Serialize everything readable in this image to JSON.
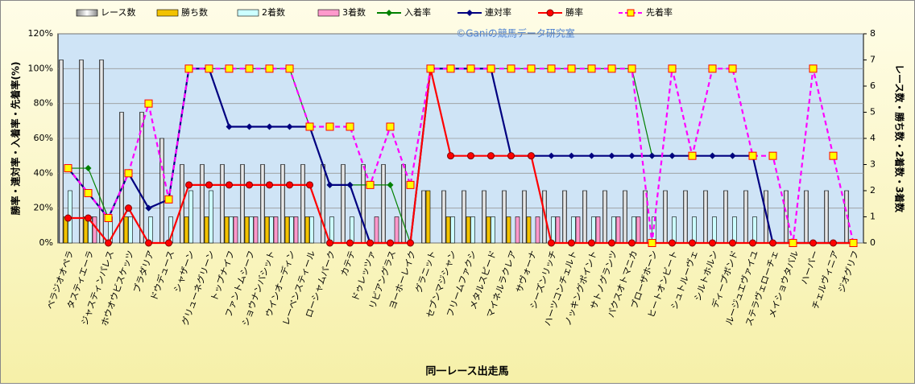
{
  "chart_data": {
    "type": "combo",
    "watermark": "©Ganiの競馬データ研究室",
    "xlabel": "同一レース出走馬",
    "ylabel": "勝率・連対率・入着率・先着率(%)",
    "y2label": "レース数・勝ち数・2着数・3着数",
    "categories": [
      "ベラジオオペラ",
      "タスティエーラ",
      "ジャスティンパレス",
      "ホウオウビスケッツ",
      "ブラダリア",
      "ドウデュース",
      "シャザーン",
      "グリューネグリーン",
      "トップナイフ",
      "ファントムシーフ",
      "ショウナンバシット",
      "ウインオーディン",
      "レーベンスティール",
      "ローシャムパーク",
      "カテテ",
      "ドゥレッツァ",
      "リビアングラス",
      "ヨーホーレイク",
      "グラニット",
      "セブンマジシャン",
      "フリームファクシ",
      "メタルスピード",
      "マイネルラクレア",
      "サヴォーナ",
      "シーズンリッチ",
      "ハーツコンチェルト",
      "ノッキングポイント",
      "サトノグランツ",
      "パクスオトマニカ",
      "ブローザホーン",
      "ヒートオンビート",
      "シュトルーヴェ",
      "シルトホルン",
      "ディープボンド",
      "ルージュエヴァイユ",
      "ステラヴェローチェ",
      "メイショウタバル",
      "ハーパー",
      "チェルヴィニア",
      "ジオグリフ"
    ],
    "ylim": [
      0,
      120
    ],
    "yticks": [
      {
        "value": 0,
        "label": "0%"
      },
      {
        "value": 20,
        "label": "20%"
      },
      {
        "value": 40,
        "label": "40%"
      },
      {
        "value": 60,
        "label": "60%"
      },
      {
        "value": 80,
        "label": "80%"
      },
      {
        "value": 100,
        "label": "100%"
      },
      {
        "value": 120,
        "label": "120%"
      }
    ],
    "y2lim": [
      0,
      8
    ],
    "y2ticks": [
      0,
      1,
      2,
      3,
      4,
      5,
      6,
      7,
      8
    ],
    "grid": true,
    "series": [
      {
        "name": "レース数",
        "type": "bar",
        "axis": "y2",
        "color": "#ffffff",
        "values": [
          7,
          7,
          7,
          5,
          5,
          4,
          3,
          3,
          3,
          3,
          3,
          3,
          3,
          3,
          3,
          3,
          3,
          3,
          2,
          2,
          2,
          2,
          2,
          2,
          2,
          2,
          2,
          2,
          2,
          2,
          2,
          2,
          2,
          2,
          2,
          2,
          2,
          2,
          2,
          2
        ]
      },
      {
        "name": "勝ち数",
        "type": "bar",
        "axis": "y2",
        "color": "#f2c200",
        "values": [
          1,
          1,
          0,
          1,
          0,
          0,
          1,
          1,
          1,
          1,
          1,
          1,
          1,
          0,
          0,
          0,
          0,
          0,
          2,
          1,
          1,
          1,
          1,
          1,
          0,
          0,
          0,
          0,
          0,
          0,
          0,
          0,
          0,
          0,
          0,
          0,
          0,
          0,
          0,
          0
        ]
      },
      {
        "name": "2着数",
        "type": "bar",
        "axis": "y2",
        "color": "#ccffff",
        "values": [
          2,
          1,
          1,
          1,
          1,
          1,
          2,
          2,
          1,
          1,
          1,
          1,
          1,
          1,
          1,
          0,
          0,
          0,
          0,
          1,
          1,
          1,
          0,
          0,
          1,
          1,
          1,
          1,
          1,
          1,
          1,
          1,
          1,
          1,
          1,
          0,
          0,
          0,
          0,
          0
        ]
      },
      {
        "name": "3着数",
        "type": "bar",
        "axis": "y2",
        "color": "#ff99cc",
        "values": [
          0,
          1,
          0,
          0,
          0,
          0,
          0,
          0,
          1,
          1,
          1,
          1,
          0,
          0,
          0,
          1,
          1,
          0,
          0,
          0,
          0,
          0,
          1,
          1,
          1,
          1,
          1,
          1,
          1,
          0,
          0,
          0,
          0,
          0,
          0,
          0,
          0,
          0,
          0,
          0
        ]
      },
      {
        "name": "入着率",
        "type": "line",
        "color": "#008000",
        "marker": "diamond",
        "values": [
          42.9,
          42.9,
          14.3,
          40,
          20,
          25,
          100,
          100,
          100,
          100,
          100,
          100,
          66.7,
          33.3,
          33.3,
          33.3,
          33.3,
          0,
          100,
          100,
          100,
          100,
          100,
          100,
          100,
          100,
          100,
          100,
          100,
          50,
          50,
          50,
          50,
          50,
          50,
          0,
          0,
          0,
          0,
          0
        ]
      },
      {
        "name": "連対率",
        "type": "line",
        "color": "#000080",
        "marker": "diamond",
        "values": [
          42.9,
          28.6,
          14.3,
          40,
          20,
          25,
          100,
          100,
          66.7,
          66.7,
          66.7,
          66.7,
          66.7,
          33.3,
          33.3,
          0,
          0,
          0,
          100,
          100,
          100,
          100,
          50,
          50,
          50,
          50,
          50,
          50,
          50,
          50,
          50,
          50,
          50,
          50,
          50,
          0,
          0,
          0,
          0,
          0
        ]
      },
      {
        "name": "勝率",
        "type": "line",
        "color": "#ff0000",
        "marker": "circle",
        "values": [
          14.3,
          14.3,
          0,
          20,
          0,
          0,
          33.3,
          33.3,
          33.3,
          33.3,
          33.3,
          33.3,
          33.3,
          0,
          0,
          0,
          0,
          0,
          100,
          50,
          50,
          50,
          50,
          50,
          0,
          0,
          0,
          0,
          0,
          0,
          0,
          0,
          0,
          0,
          0,
          0,
          0,
          0,
          0,
          0
        ]
      },
      {
        "name": "先着率",
        "type": "line",
        "color": "#ff00ff",
        "dashed": true,
        "marker": "square",
        "values": [
          42.9,
          28.6,
          14.3,
          40,
          80,
          25,
          100,
          100,
          100,
          100,
          100,
          100,
          66.7,
          66.7,
          66.7,
          33.3,
          66.7,
          33.3,
          100,
          100,
          100,
          100,
          100,
          100,
          100,
          100,
          100,
          100,
          100,
          0,
          100,
          50,
          100,
          100,
          50,
          50,
          0,
          100,
          50,
          0
        ]
      }
    ]
  }
}
